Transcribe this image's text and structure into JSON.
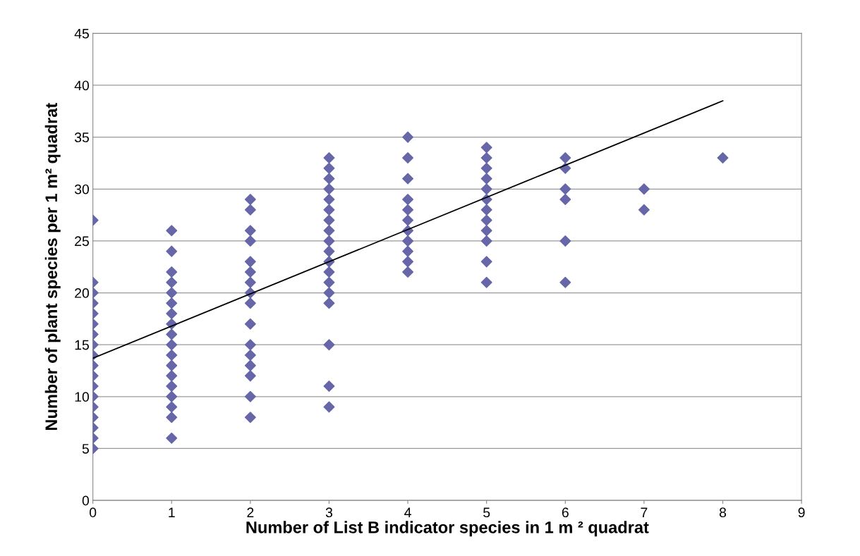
{
  "chart_data": {
    "type": "scatter",
    "xlabel": "Number of List B indicator species in 1 m ² quadrat",
    "ylabel": "Number of plant species per 1 m² quadrat",
    "xlim": [
      0,
      9
    ],
    "xticks": [
      0,
      1,
      2,
      3,
      4,
      5,
      6,
      7,
      8,
      9
    ],
    "ylim": [
      0,
      45
    ],
    "yticks": [
      0,
      5,
      10,
      15,
      20,
      25,
      30,
      35,
      40,
      45
    ],
    "grid": "y",
    "legend": false,
    "marker": "diamond",
    "series": [
      {
        "color": "#6666a8",
        "x": [
          0,
          0,
          0,
          0,
          0,
          0,
          0,
          0,
          0,
          0,
          0,
          0,
          0,
          0,
          0,
          0,
          0,
          0,
          1,
          1,
          1,
          1,
          1,
          1,
          1,
          1,
          1,
          1,
          1,
          1,
          1,
          1,
          1,
          1,
          1,
          1,
          2,
          2,
          2,
          2,
          2,
          2,
          2,
          2,
          2,
          2,
          2,
          2,
          2,
          2,
          2,
          2,
          3,
          3,
          3,
          3,
          3,
          3,
          3,
          3,
          3,
          3,
          3,
          3,
          3,
          3,
          3,
          3,
          3,
          3,
          4,
          4,
          4,
          4,
          4,
          4,
          4,
          4,
          4,
          4,
          4,
          5,
          5,
          5,
          5,
          5,
          5,
          5,
          5,
          5,
          5,
          5,
          5,
          6,
          6,
          6,
          6,
          6,
          6,
          7,
          7,
          8
        ],
        "values": [
          5,
          6,
          7,
          8,
          9,
          10,
          11,
          12,
          13,
          14,
          15,
          16,
          17,
          18,
          19,
          20,
          21,
          27,
          6,
          8,
          9,
          10,
          11,
          12,
          13,
          14,
          15,
          16,
          17,
          18,
          19,
          20,
          21,
          22,
          24,
          26,
          8,
          10,
          12,
          13,
          14,
          15,
          17,
          19,
          20,
          21,
          22,
          23,
          25,
          26,
          28,
          29,
          9,
          11,
          15,
          19,
          20,
          21,
          22,
          23,
          24,
          25,
          26,
          27,
          28,
          29,
          30,
          31,
          32,
          33,
          22,
          23,
          24,
          25,
          26,
          27,
          28,
          29,
          31,
          33,
          35,
          21,
          23,
          25,
          26,
          27,
          28,
          29,
          30,
          31,
          32,
          33,
          34,
          21,
          25,
          29,
          30,
          32,
          33,
          28,
          30,
          33
        ]
      },
      {
        "type": "line",
        "color": "#000000",
        "x": [
          0,
          8
        ],
        "values": [
          13.7,
          38.5
        ],
        "marker": "none",
        "line_style": "solid"
      }
    ]
  }
}
